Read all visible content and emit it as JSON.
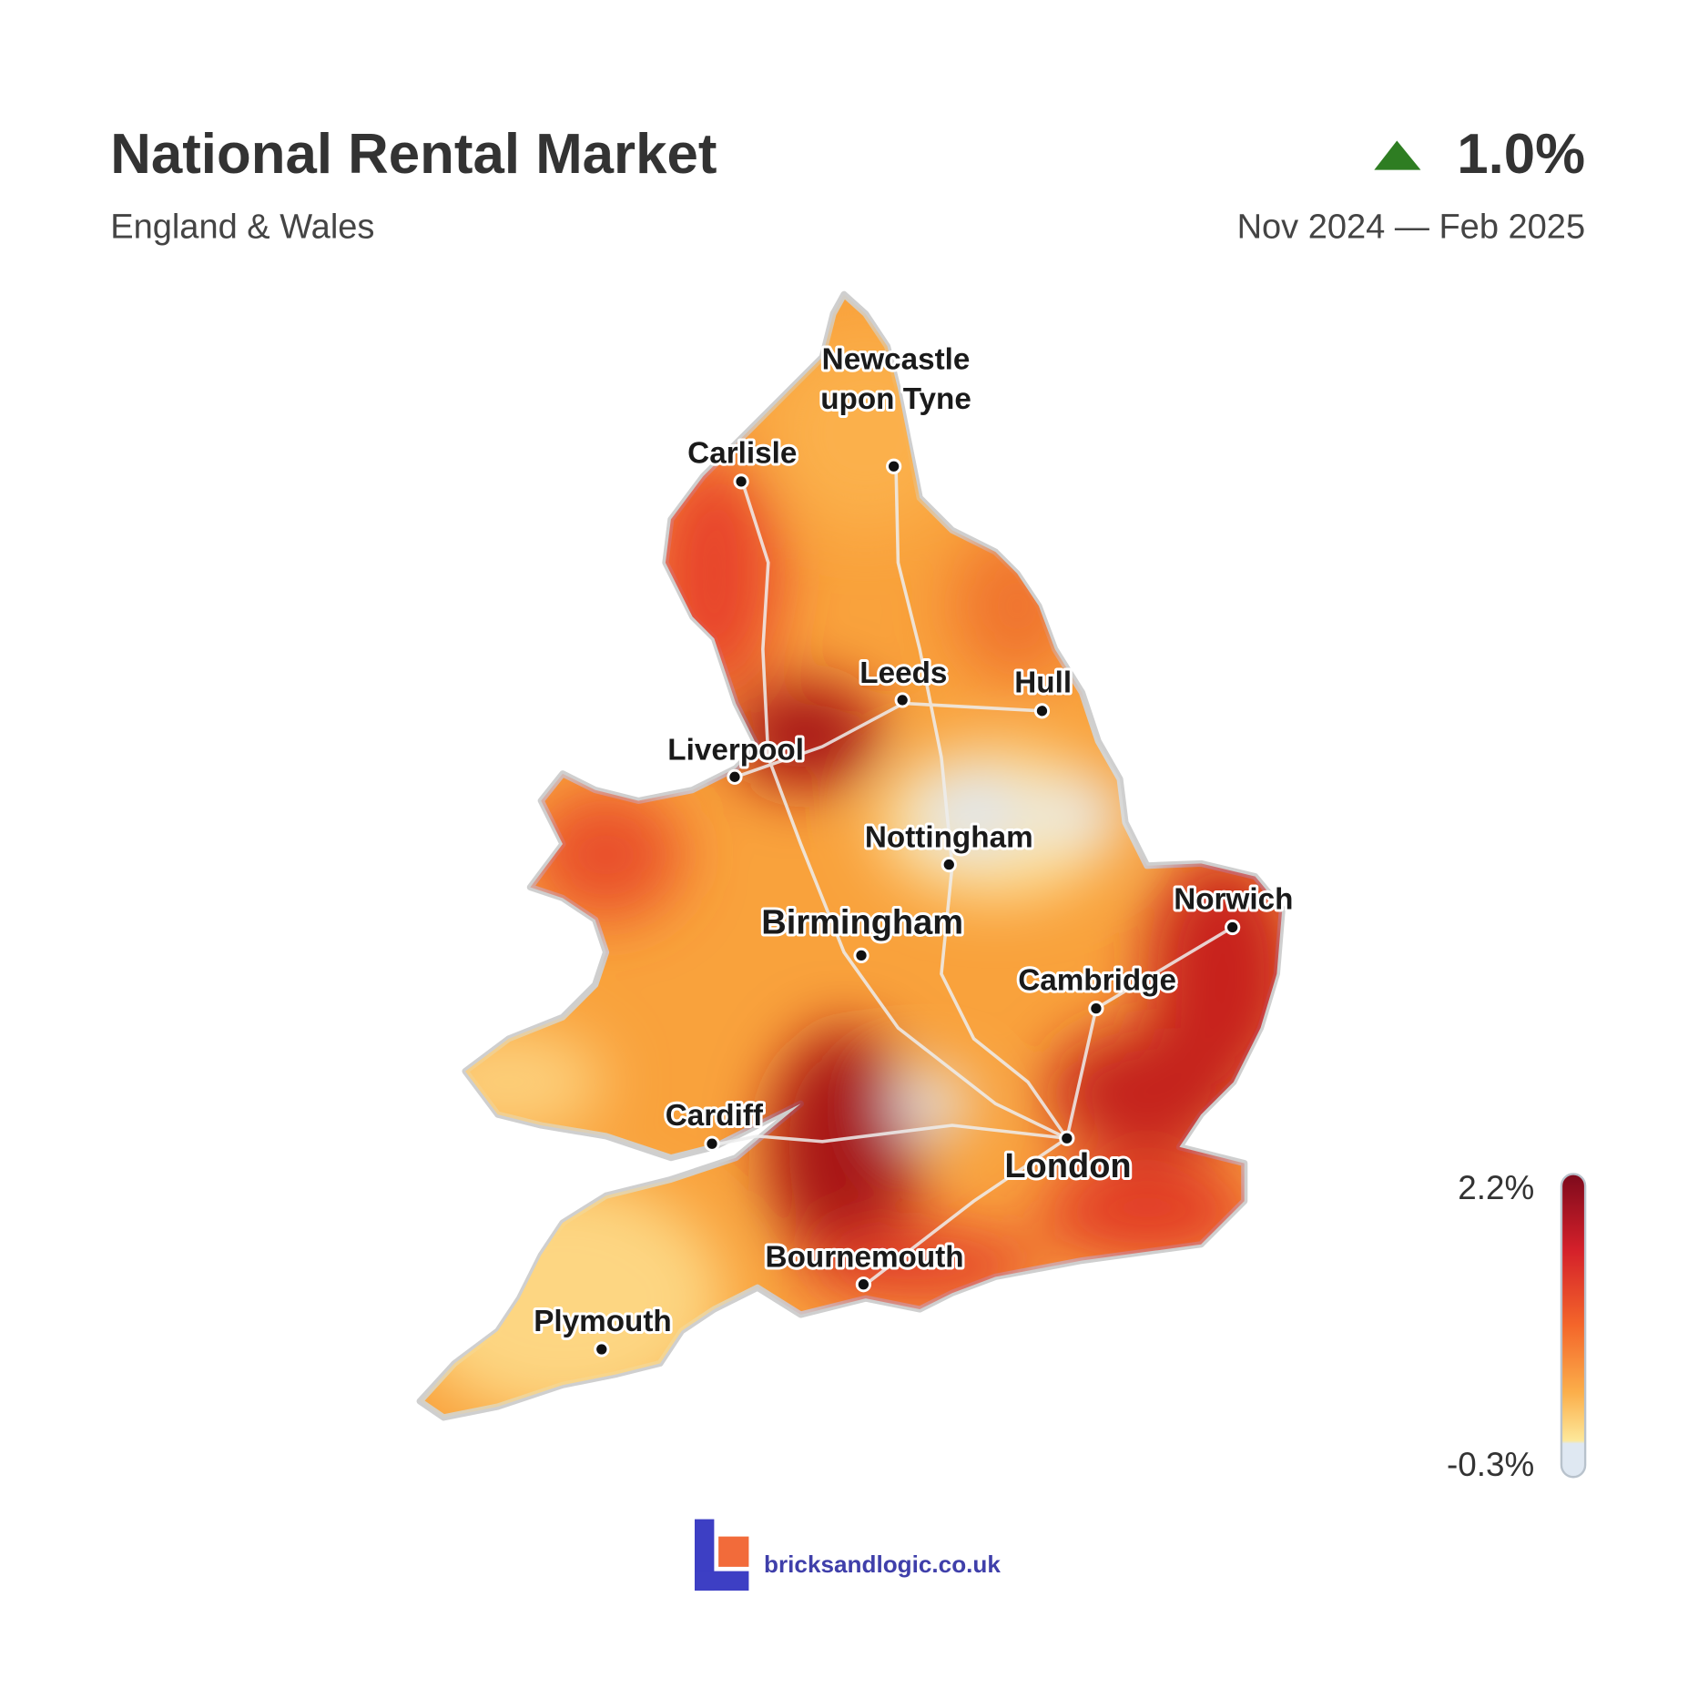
{
  "header": {
    "title": "National Rental Market",
    "subtitle": "England & Wales",
    "change": "1.0%",
    "period": "Nov 2024 — Feb 2025"
  },
  "map": {
    "cities": [
      {
        "lines": [
          "Carlisle"
        ]
      },
      {
        "lines": [
          "Newcastle",
          "upon Tyne"
        ]
      },
      {
        "lines": [
          "Leeds"
        ]
      },
      {
        "lines": [
          "Hull"
        ]
      },
      {
        "lines": [
          "Liverpool"
        ]
      },
      {
        "lines": [
          "Nottingham"
        ]
      },
      {
        "lines": [
          "Norwich"
        ]
      },
      {
        "lines": [
          "Birmingham"
        ]
      },
      {
        "lines": [
          "Cambridge"
        ]
      },
      {
        "lines": [
          "Cardiff"
        ]
      },
      {
        "lines": [
          "London"
        ]
      },
      {
        "lines": [
          "Bournemouth"
        ]
      },
      {
        "lines": [
          "Plymouth"
        ]
      }
    ]
  },
  "legend": {
    "max_label": "2.2%",
    "min_label": "-0.3%"
  },
  "footer": {
    "brand": "bricksandlogic.co.uk"
  }
}
